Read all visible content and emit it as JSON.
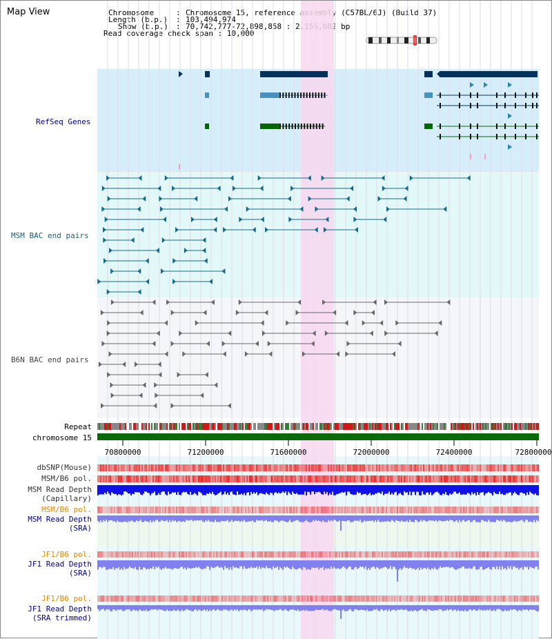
{
  "view": {
    "title": "Map View"
  },
  "header": {
    "chromosome_key": "Chromosome",
    "chromosome_value": "Chromosome 15, reference assembly (C57BL/6J) (Build 37)",
    "length_key": "Length (b.p.)",
    "length_value": "103,494,974",
    "show_key": "Show (b.p.)",
    "show_value": "70,742,777-72,898,858 : 2,156,082 bp",
    "coverage_line": "Read coverage check span : 10,000"
  },
  "tracks": {
    "refseq": "RefSeq Genes",
    "msm_bac": "MSM BAC end pairs",
    "b6n_bac": "B6N BAC end pairs",
    "repeat": "Repeat",
    "chromosome": "chromosome 15",
    "dbsnp": "dbSNP(Mouse)",
    "msm_pol": "MSM/B6 pol.",
    "msm_depth_cap_1": "MSM Read Depth",
    "msm_depth_cap_2": "(Capillary)",
    "msm_pol_2": "MSM/B6 pol.",
    "msm_depth_sra_1": "MSM Read Depth",
    "msm_depth_sra_2": "(SRA)",
    "jf1_pol_1": "JF1/B6 pol.",
    "jf1_depth_sra_1": "JF1 Read Depth",
    "jf1_depth_sra_2": "(SRA)",
    "jf1_pol_2": "JF1/B6 pol.",
    "jf1_depth_trim_1": "JF1 Read Depth",
    "jf1_depth_trim_2": "(SRA trimmed)"
  },
  "axis": {
    "ticks": [
      "70800000",
      "71200000",
      "71600000",
      "72000000",
      "72400000",
      "72800000"
    ]
  },
  "colors": {
    "refseq_bg": "#d6eefa",
    "msm_bg": "#e3f8f8",
    "b6n_bg": "#f4f6fa",
    "highlight": "#f8d8f0",
    "gene_navy": "#04325e",
    "gene_green": "#046604",
    "gene_light": "#4a90c0",
    "msm_pair": "#156a8a",
    "b6n_pair": "#666666",
    "chrom_bar": "#0a6a0a",
    "pol_red": "#f05050",
    "depth_blue": "#1010e8",
    "depth_light": "#8080f0"
  }
}
